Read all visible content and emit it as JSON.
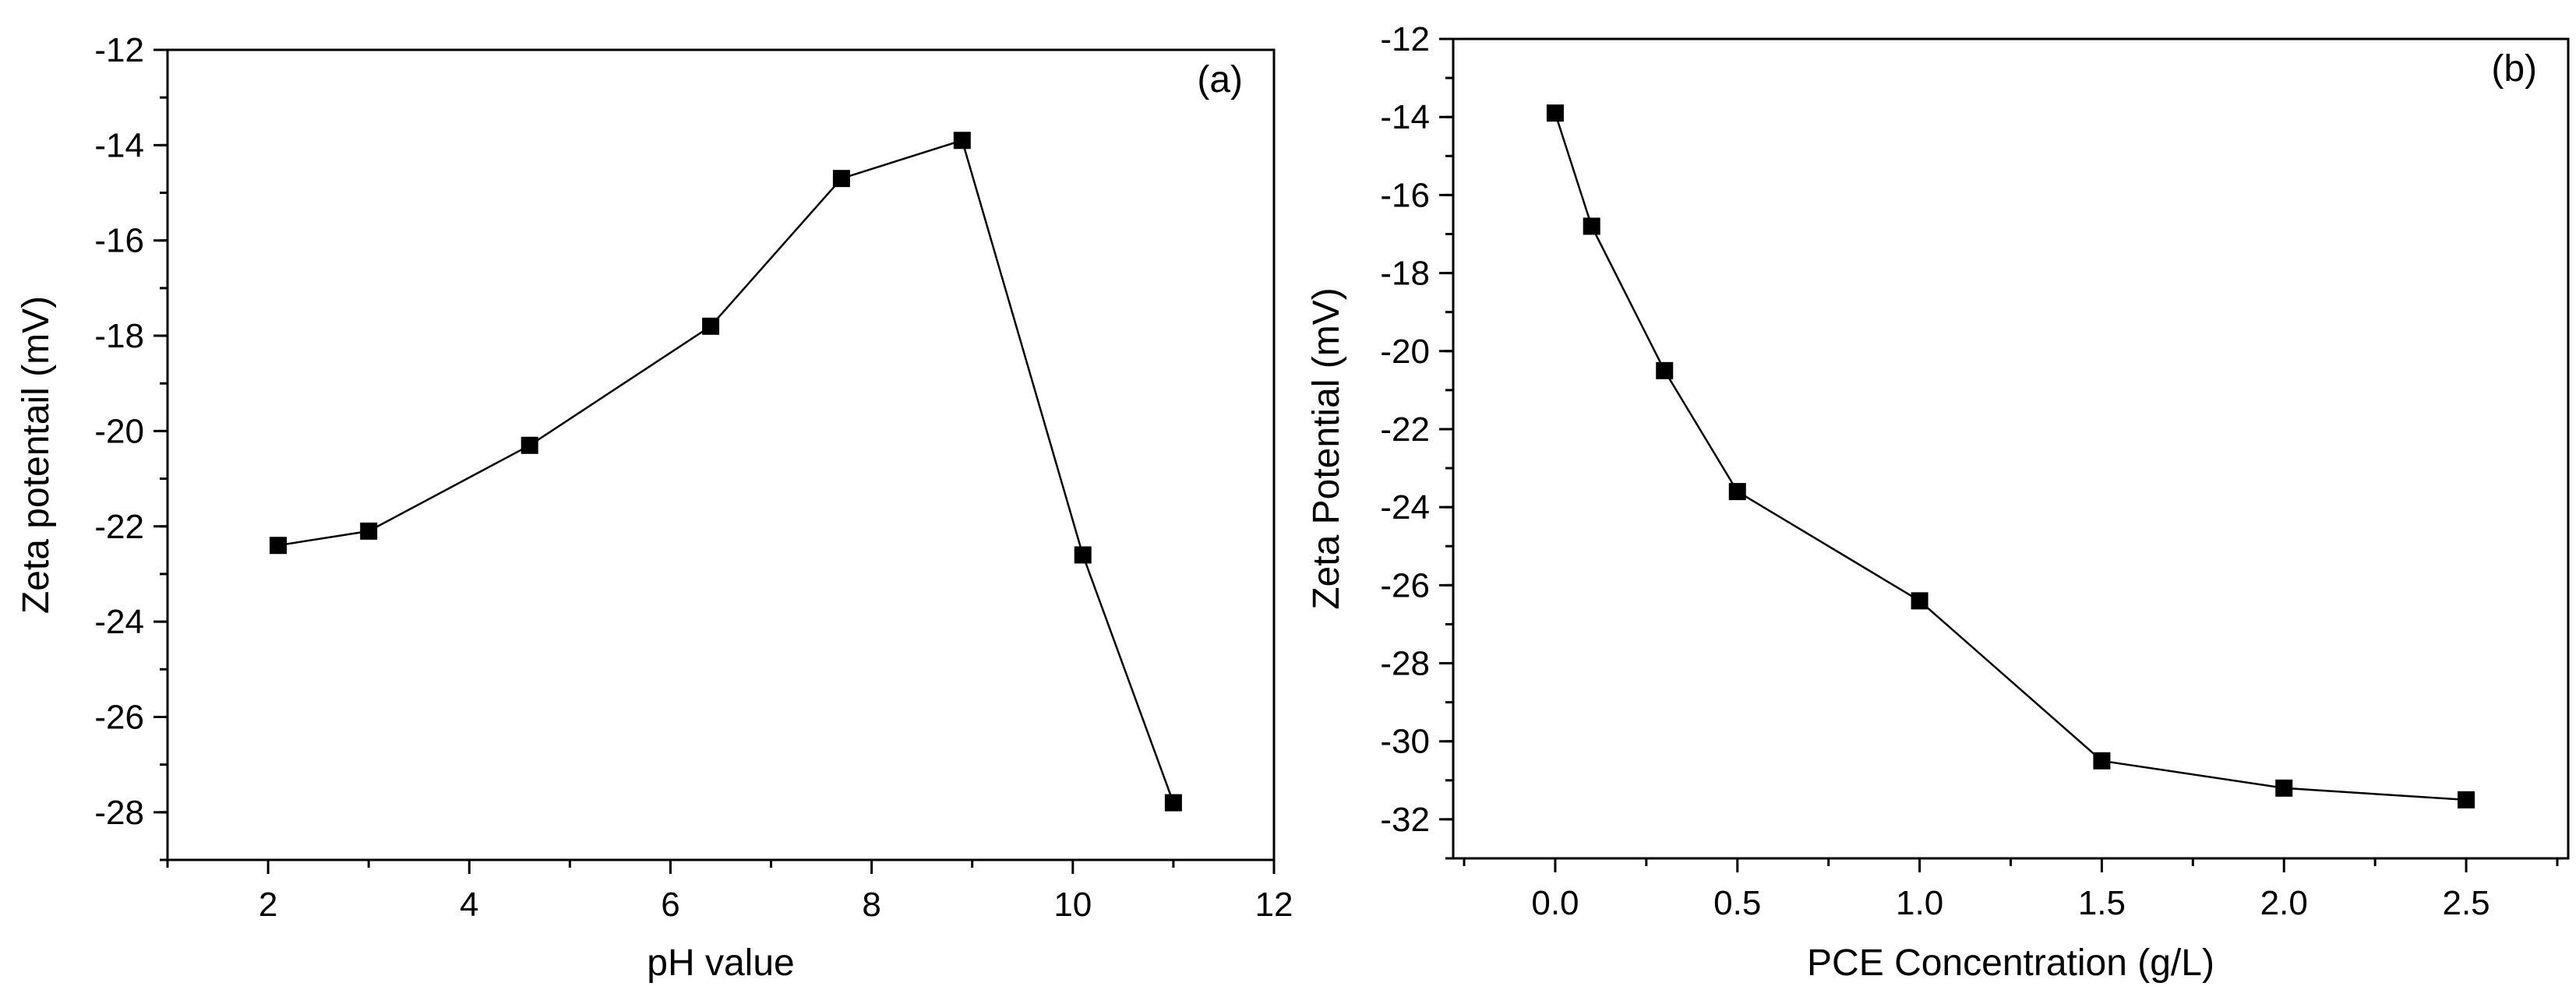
{
  "chart_data": [
    {
      "type": "line",
      "panel_label": "(a)",
      "title": "",
      "xlabel": "pH value",
      "ylabel": "Zeta potentail (mV)",
      "xlim": [
        1,
        12
      ],
      "ylim": [
        -29,
        -12
      ],
      "x_ticks": [
        2,
        4,
        6,
        8,
        10,
        12
      ],
      "x_tick_labels": [
        "2",
        "4",
        "6",
        "8",
        "10",
        "12"
      ],
      "y_ticks": [
        -28,
        -26,
        -24,
        -22,
        -20,
        -18,
        -16,
        -14,
        -12
      ],
      "y_tick_labels": [
        "-28",
        "-26",
        "-24",
        "-22",
        "-20",
        "-18",
        "-16",
        "-14",
        "-12"
      ],
      "marker": "square",
      "series": [
        {
          "name": "Zeta potential",
          "x": [
            2.1,
            3.0,
            4.6,
            6.4,
            7.7,
            8.9,
            10.1,
            11.0
          ],
          "y": [
            -22.4,
            -22.1,
            -20.3,
            -17.8,
            -14.7,
            -13.9,
            -22.6,
            -27.8
          ]
        }
      ]
    },
    {
      "type": "line",
      "panel_label": "(b)",
      "title": "",
      "xlabel": "PCE Concentration (g/L)",
      "ylabel": "Zeta Potential (mV)",
      "xlim": [
        -0.28,
        2.78
      ],
      "ylim": [
        -33,
        -12
      ],
      "x_ticks": [
        0.0,
        0.5,
        1.0,
        1.5,
        2.0,
        2.5
      ],
      "x_tick_labels": [
        "0.0",
        "0.5",
        "1.0",
        "1.5",
        "2.0",
        "2.5"
      ],
      "y_ticks": [
        -32,
        -30,
        -28,
        -26,
        -24,
        -22,
        -20,
        -18,
        -16,
        -14,
        -12
      ],
      "y_tick_labels": [
        "-32",
        "-30",
        "-28",
        "-26",
        "-24",
        "-22",
        "-20",
        "-18",
        "-16",
        "-14",
        "-12"
      ],
      "marker": "square",
      "series": [
        {
          "name": "Zeta potential",
          "x": [
            0.0,
            0.1,
            0.3,
            0.5,
            1.0,
            1.5,
            2.0,
            2.5
          ],
          "y": [
            -13.9,
            -16.8,
            -20.5,
            -23.6,
            -26.4,
            -30.5,
            -31.2,
            -31.5
          ]
        }
      ]
    }
  ]
}
